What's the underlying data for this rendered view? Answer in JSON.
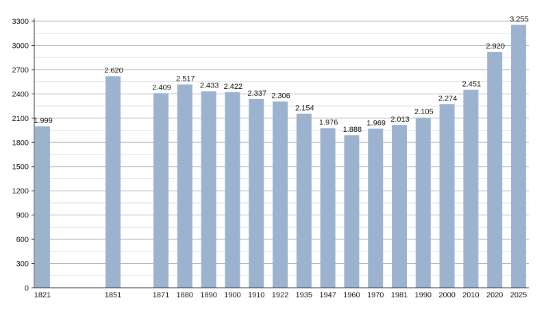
{
  "chart_data": {
    "type": "bar",
    "categories": [
      "1821",
      "1851",
      "1871",
      "1880",
      "1890",
      "1900",
      "1910",
      "1922",
      "1935",
      "1947",
      "1960",
      "1970",
      "1981",
      "1990",
      "2000",
      "2010",
      "2020",
      "2025"
    ],
    "x": [
      1821,
      1851,
      1871,
      1880,
      1890,
      1900,
      1910,
      1922,
      1935,
      1947,
      1960,
      1970,
      1981,
      1990,
      2000,
      2010,
      2020,
      2025
    ],
    "values": [
      1999,
      2620,
      2409,
      2517,
      2433,
      2422,
      2337,
      2306,
      2154,
      1976,
      1888,
      1969,
      2013,
      2105,
      2274,
      2451,
      2920,
      3255
    ],
    "value_labels": [
      "1.999",
      "2.620",
      "2.409",
      "2.517",
      "2.433",
      "2.422",
      "2.337",
      "2.306",
      "2.154",
      "1.976",
      "1.888",
      "1.969",
      "2.013",
      "2.105",
      "2.274",
      "2.451",
      "2.920",
      "3.255"
    ],
    "yticks": [
      0,
      300,
      600,
      900,
      1200,
      1500,
      1800,
      2100,
      2400,
      2700,
      3000,
      3300
    ],
    "ylim": [
      0,
      3300
    ],
    "title": "",
    "xlabel": "",
    "ylabel": "",
    "grid": true,
    "legend": "none",
    "colors": {
      "bar": "#9bb3cf",
      "grid_major": "#b8b8b8",
      "grid_minor": "#dedede",
      "axis": "#333333",
      "text": "#111111"
    }
  }
}
